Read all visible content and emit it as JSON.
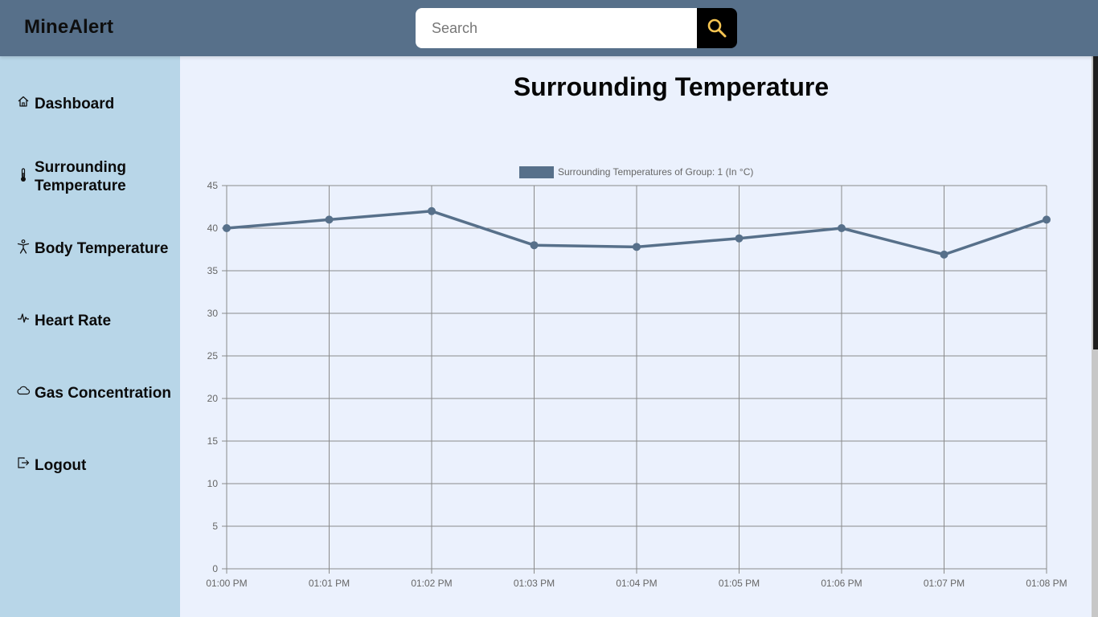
{
  "app": {
    "brand": "MineAlert"
  },
  "search": {
    "placeholder": "Search"
  },
  "sidebar": {
    "items": [
      {
        "label": "Dashboard",
        "icon": "home-icon"
      },
      {
        "label": "Surrounding Temperature",
        "icon": "thermometer-icon"
      },
      {
        "label": "Body Temperature",
        "icon": "person-icon"
      },
      {
        "label": "Heart Rate",
        "icon": "heartbeat-icon"
      },
      {
        "label": "Gas Concentration",
        "icon": "cloud-icon"
      },
      {
        "label": "Logout",
        "icon": "logout-icon"
      }
    ]
  },
  "page": {
    "title": "Surrounding Temperature"
  },
  "colors": {
    "topbar": "#57708a",
    "sidebar": "#b8d6e8",
    "background": "#ebf1fd",
    "series": "#57708a",
    "search_icon": "#f5c451"
  },
  "chart_data": {
    "type": "line",
    "title": "",
    "xlabel": "",
    "ylabel": "",
    "categories": [
      "01:00 PM",
      "01:01 PM",
      "01:02 PM",
      "01:03 PM",
      "01:04 PM",
      "01:05 PM",
      "01:06 PM",
      "01:07 PM",
      "01:08 PM"
    ],
    "series": [
      {
        "name": "Surrounding Temperatures of Group: 1 (In °C)",
        "values": [
          40,
          41,
          42,
          38,
          37.8,
          38.8,
          40,
          36.9,
          41
        ]
      }
    ],
    "ylim": [
      0,
      45
    ],
    "yticks": [
      0,
      5,
      10,
      15,
      20,
      25,
      30,
      35,
      40,
      45
    ],
    "grid": true,
    "legend": "top-center"
  }
}
